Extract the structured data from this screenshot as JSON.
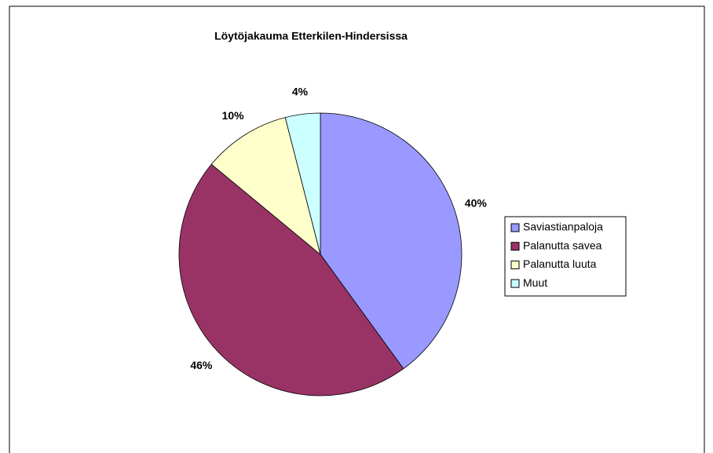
{
  "chart_data": {
    "type": "pie",
    "title": "Löytöjakauma Etterkilen-Hindersissa",
    "categories": [
      "Saviastianpaloja",
      "Palanutta savea",
      "Palanutta luuta",
      "Muut"
    ],
    "values": [
      40,
      46,
      10,
      4
    ],
    "value_labels": [
      "40%",
      "46%",
      "10%",
      "4%"
    ],
    "colors": [
      "#9999ff",
      "#993366",
      "#ffffcc",
      "#ccffff"
    ],
    "legend": "right"
  }
}
